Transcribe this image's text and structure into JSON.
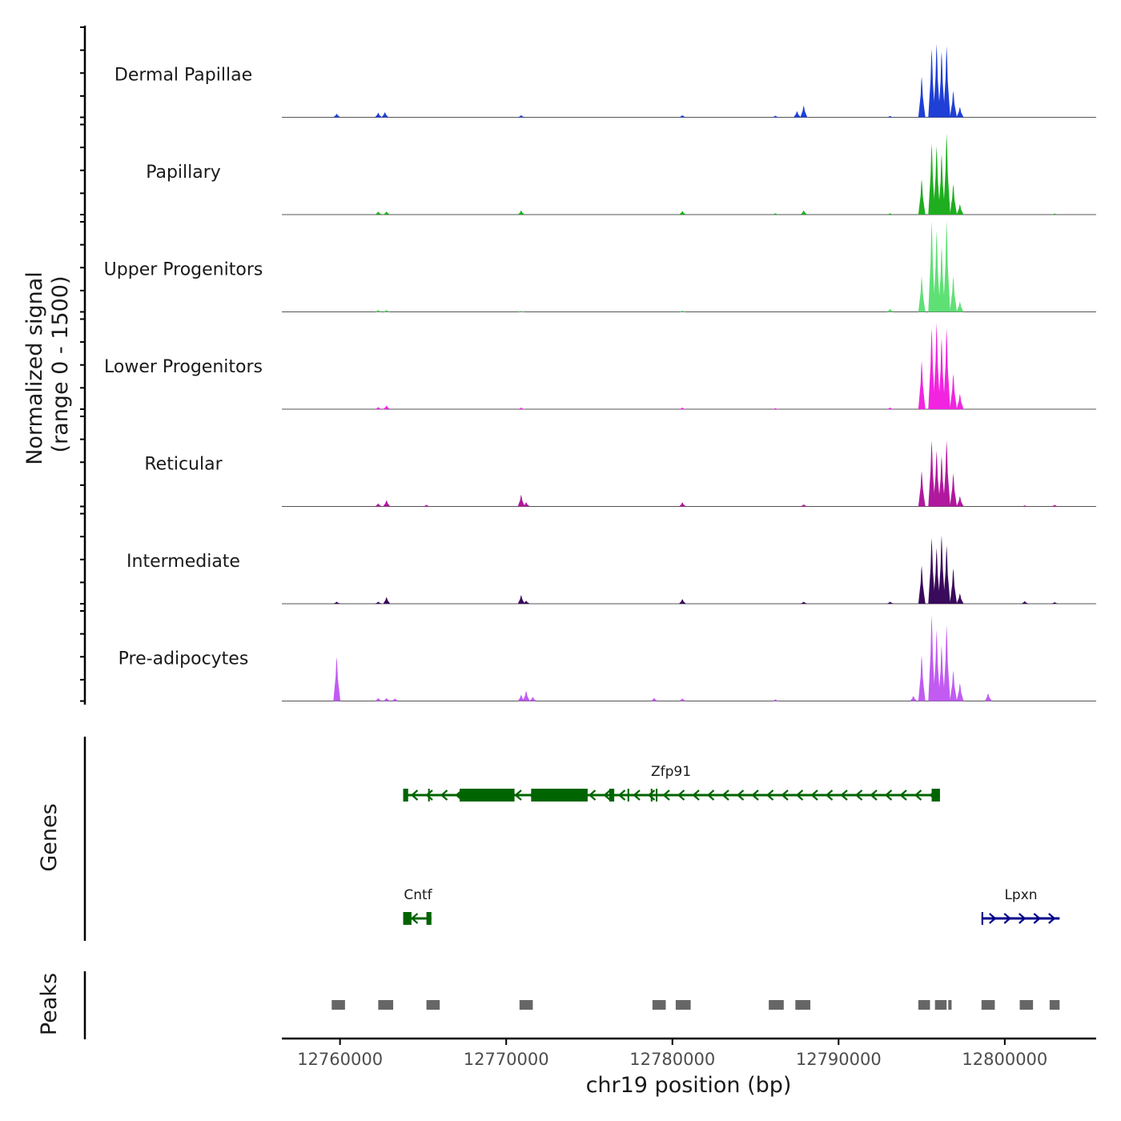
{
  "chart_data": {
    "type": "area",
    "title": "",
    "ylabel_line1": "Normalized signal",
    "ylabel_line2": "(range 0 - 1500)",
    "ylim": [
      0,
      1500
    ],
    "xlabel": "chr19 position (bp)",
    "xlim": [
      12756500,
      12805500
    ],
    "x_ticks": [
      12760000,
      12770000,
      12780000,
      12790000,
      12800000
    ],
    "x_tick_labels": [
      "12760000",
      "12770000",
      "12780000",
      "12790000",
      "12800000"
    ],
    "genes_label": "Genes",
    "peaks_label": "Peaks",
    "tracks": [
      {
        "name": "Dermal Papillae",
        "color": "#1f3fd6",
        "peaks": [
          [
            12759800,
            70
          ],
          [
            12762300,
            90
          ],
          [
            12762700,
            100
          ],
          [
            12770900,
            40
          ],
          [
            12780600,
            40
          ],
          [
            12786200,
            30
          ],
          [
            12787500,
            120
          ],
          [
            12787900,
            230
          ],
          [
            12793100,
            25
          ],
          [
            12795000,
            800
          ],
          [
            12795600,
            1350
          ],
          [
            12795900,
            1450
          ],
          [
            12796200,
            1300
          ],
          [
            12796500,
            1400
          ],
          [
            12796900,
            520
          ],
          [
            12797300,
            200
          ]
        ]
      },
      {
        "name": "Papillary",
        "color": "#1fae1f",
        "peaks": [
          [
            12762300,
            60
          ],
          [
            12762800,
            60
          ],
          [
            12770900,
            80
          ],
          [
            12780600,
            70
          ],
          [
            12786200,
            25
          ],
          [
            12787900,
            80
          ],
          [
            12793100,
            25
          ],
          [
            12795000,
            700
          ],
          [
            12795600,
            1400
          ],
          [
            12795900,
            1350
          ],
          [
            12796200,
            1200
          ],
          [
            12796500,
            1600
          ],
          [
            12796900,
            600
          ],
          [
            12797300,
            200
          ],
          [
            12803000,
            20
          ]
        ]
      },
      {
        "name": "Upper Progenitors",
        "color": "#5fe075",
        "peaks": [
          [
            12762300,
            40
          ],
          [
            12762800,
            40
          ],
          [
            12770900,
            20
          ],
          [
            12780600,
            25
          ],
          [
            12793100,
            60
          ],
          [
            12795000,
            700
          ],
          [
            12795600,
            1800
          ],
          [
            12795900,
            1600
          ],
          [
            12796200,
            1300
          ],
          [
            12796500,
            1800
          ],
          [
            12796900,
            700
          ],
          [
            12797300,
            200
          ]
        ]
      },
      {
        "name": "Lower Progenitors",
        "color": "#f224e0",
        "peaks": [
          [
            12762300,
            40
          ],
          [
            12762800,
            70
          ],
          [
            12770900,
            30
          ],
          [
            12780600,
            30
          ],
          [
            12786200,
            20
          ],
          [
            12793100,
            30
          ],
          [
            12795000,
            950
          ],
          [
            12795600,
            1600
          ],
          [
            12795900,
            1700
          ],
          [
            12796200,
            1400
          ],
          [
            12796500,
            1600
          ],
          [
            12796900,
            700
          ],
          [
            12797300,
            300
          ]
        ]
      },
      {
        "name": "Reticular",
        "color": "#b0189e",
        "peaks": [
          [
            12762300,
            60
          ],
          [
            12762800,
            120
          ],
          [
            12765200,
            30
          ],
          [
            12770900,
            230
          ],
          [
            12771200,
            80
          ],
          [
            12780600,
            80
          ],
          [
            12787900,
            40
          ],
          [
            12795000,
            700
          ],
          [
            12795600,
            1300
          ],
          [
            12795900,
            1100
          ],
          [
            12796200,
            1000
          ],
          [
            12796500,
            1300
          ],
          [
            12796900,
            650
          ],
          [
            12797300,
            200
          ],
          [
            12801200,
            20
          ],
          [
            12803000,
            30
          ]
        ]
      },
      {
        "name": "Intermediate",
        "color": "#3a0a5c",
        "peaks": [
          [
            12759800,
            40
          ],
          [
            12762300,
            40
          ],
          [
            12762800,
            130
          ],
          [
            12770900,
            170
          ],
          [
            12771200,
            60
          ],
          [
            12780600,
            90
          ],
          [
            12787900,
            40
          ],
          [
            12793100,
            40
          ],
          [
            12795000,
            750
          ],
          [
            12795600,
            1300
          ],
          [
            12795900,
            1100
          ],
          [
            12796200,
            1350
          ],
          [
            12796500,
            1150
          ],
          [
            12796900,
            700
          ],
          [
            12797300,
            200
          ],
          [
            12801200,
            50
          ],
          [
            12803000,
            30
          ]
        ]
      },
      {
        "name": "Pre-adipocytes",
        "color": "#c15bf2",
        "peaks": [
          [
            12759800,
            870
          ],
          [
            12762300,
            60
          ],
          [
            12762800,
            60
          ],
          [
            12763300,
            50
          ],
          [
            12770900,
            120
          ],
          [
            12771200,
            200
          ],
          [
            12771600,
            80
          ],
          [
            12778900,
            60
          ],
          [
            12780600,
            50
          ],
          [
            12786200,
            30
          ],
          [
            12794500,
            100
          ],
          [
            12795000,
            900
          ],
          [
            12795600,
            1700
          ],
          [
            12795900,
            1400
          ],
          [
            12796200,
            1100
          ],
          [
            12796500,
            1500
          ],
          [
            12796900,
            600
          ],
          [
            12797300,
            350
          ],
          [
            12799000,
            150
          ]
        ]
      }
    ],
    "genes": [
      {
        "name": "Zfp91",
        "strand": "-",
        "color": "#006400",
        "row": 1,
        "start": 12763800,
        "end": 12796100,
        "exons": [
          [
            12763800,
            12764100
          ],
          [
            12765300,
            12765400
          ],
          [
            12767200,
            12770500
          ],
          [
            12771500,
            12774900
          ],
          [
            12776200,
            12776500
          ],
          [
            12777300,
            12777400
          ],
          [
            12778700,
            12778800
          ],
          [
            12779000,
            12779100
          ],
          [
            12795600,
            12796100
          ]
        ]
      },
      {
        "name": "Cntf",
        "strand": "-",
        "color": "#006400",
        "row": 2,
        "start": 12763800,
        "end": 12765500,
        "exons": [
          [
            12763800,
            12764300
          ],
          [
            12765200,
            12765500
          ]
        ]
      },
      {
        "name": "Lpxn",
        "strand": "+",
        "color": "#00008b",
        "row": 2,
        "start": 12798600,
        "end": 12803300,
        "exons": [
          [
            12798600,
            12798700
          ]
        ]
      }
    ],
    "peaks": [
      [
        12759500,
        12760300
      ],
      [
        12762300,
        12763200
      ],
      [
        12765200,
        12766000
      ],
      [
        12770800,
        12771600
      ],
      [
        12778800,
        12779600
      ],
      [
        12780200,
        12781100
      ],
      [
        12785800,
        12786700
      ],
      [
        12787400,
        12788300
      ],
      [
        12794800,
        12795500
      ],
      [
        12795800,
        12796500
      ],
      [
        12796600,
        12796800
      ],
      [
        12798600,
        12799400
      ],
      [
        12800900,
        12801700
      ],
      [
        12802700,
        12803300
      ]
    ]
  }
}
